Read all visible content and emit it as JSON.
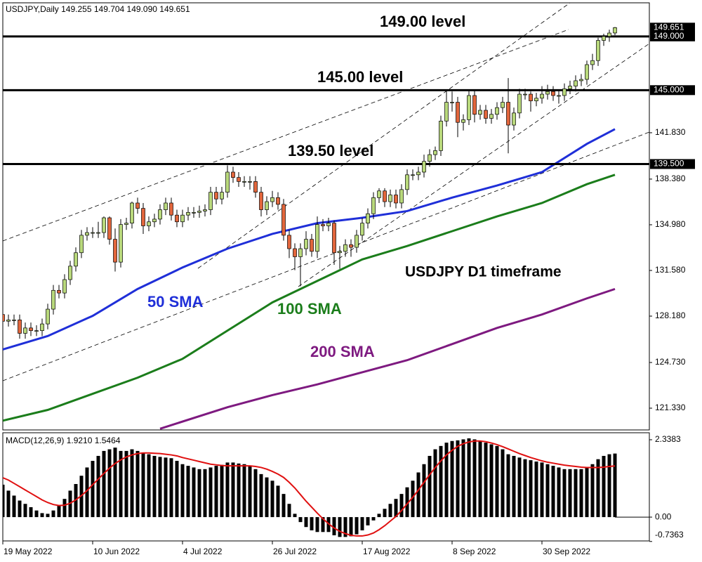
{
  "chart_data": [
    {
      "type": "candlestick",
      "title": "USDJPY,Daily  149.255 149.704 149.090 149.651",
      "categories": [
        "19 May 2022",
        null,
        null,
        null,
        null,
        null,
        null,
        null,
        null,
        null,
        null,
        null,
        null,
        null,
        null,
        null,
        "10 Jun 2022",
        null,
        null,
        null,
        null,
        null,
        null,
        null,
        null,
        null,
        null,
        null,
        null,
        null,
        null,
        null,
        "4 Jul 2022",
        null,
        null,
        null,
        null,
        null,
        null,
        null,
        null,
        null,
        null,
        null,
        null,
        null,
        null,
        null,
        "26 Jul 2022",
        null,
        null,
        null,
        null,
        null,
        null,
        null,
        null,
        null,
        null,
        null,
        null,
        null,
        null,
        null,
        "17 Aug 2022",
        null,
        null,
        null,
        null,
        null,
        null,
        null,
        null,
        null,
        null,
        null,
        null,
        null,
        null,
        null,
        "8 Sep 2022",
        null,
        null,
        null,
        null,
        null,
        null,
        null,
        null,
        null,
        null,
        null,
        null,
        null,
        null,
        null,
        "30 Sep 2022",
        null,
        null,
        null,
        null,
        null,
        null,
        null,
        null,
        null,
        null,
        null,
        null,
        null
      ],
      "open": [
        128.3,
        127.8,
        127.9,
        127.9,
        126.9,
        127.3,
        127.1,
        127.1,
        127.6,
        128.7,
        130.1,
        129.9,
        130.9,
        131.9,
        132.9,
        134.2,
        134.4,
        134.4,
        134.4,
        135.5,
        133.9,
        132.2,
        135.0,
        135.1,
        136.6,
        136.2,
        134.9,
        135.2,
        135.4,
        136.1,
        136.6,
        135.7,
        135.2,
        135.7,
        135.9,
        135.9,
        136.0,
        136.1,
        137.4,
        136.9,
        137.4,
        138.9,
        138.5,
        138.2,
        138.2,
        138.2,
        137.4,
        136.1,
        136.7,
        137.0,
        136.5,
        134.2,
        133.2,
        132.6,
        133.2,
        133.9,
        133.0,
        135.0,
        134.9,
        135.1,
        132.9,
        133.0,
        133.5,
        133.3,
        134.2,
        135.1,
        135.8,
        137.0,
        137.5,
        136.7,
        137.2,
        136.6,
        137.6,
        138.7,
        138.7,
        138.9,
        139.7,
        140.2,
        140.5,
        142.7,
        144.1,
        144.1,
        142.6,
        142.8,
        144.6,
        143.2,
        143.5,
        142.9,
        143.2,
        143.7,
        144.1,
        142.4,
        143.3,
        144.7,
        144.7,
        144.2,
        144.4,
        144.7,
        144.9,
        144.6,
        144.6,
        145.1,
        145.3,
        145.7,
        145.8,
        146.9,
        147.2,
        148.7,
        149.0,
        149.255
      ],
      "high": [
        128.7,
        128.3,
        128.3,
        128.3,
        127.7,
        127.7,
        127.5,
        128.0,
        129.1,
        130.5,
        130.5,
        131.3,
        132.3,
        133.3,
        134.6,
        134.8,
        134.8,
        135.2,
        135.6,
        135.6,
        134.7,
        135.4,
        135.5,
        136.7,
        137.0,
        136.6,
        135.6,
        135.8,
        136.5,
        137.0,
        137.0,
        136.1,
        136.1,
        136.3,
        136.3,
        136.4,
        136.5,
        137.8,
        137.8,
        137.8,
        139.4,
        139.3,
        138.9,
        138.6,
        138.6,
        138.6,
        137.8,
        137.1,
        137.5,
        137.4,
        136.9,
        134.6,
        133.6,
        133.6,
        134.5,
        134.3,
        135.6,
        135.4,
        135.5,
        135.3,
        133.4,
        133.9,
        133.9,
        134.6,
        135.5,
        136.2,
        137.4,
        137.7,
        137.7,
        137.6,
        137.6,
        138.0,
        139.1,
        139.1,
        139.3,
        140.2,
        140.6,
        140.8,
        143.1,
        145.0,
        144.9,
        144.5,
        143.2,
        145.0,
        145.0,
        143.9,
        143.9,
        143.6,
        144.1,
        144.5,
        145.9,
        143.7,
        145.1,
        145.1,
        144.9,
        144.8,
        145.3,
        145.4,
        145.3,
        145.0,
        145.5,
        145.7,
        146.1,
        146.2,
        147.2,
        147.7,
        148.9,
        149.2,
        149.5,
        149.704
      ],
      "low": [
        127.4,
        127.4,
        127.5,
        126.5,
        126.5,
        126.7,
        126.7,
        126.7,
        127.2,
        128.3,
        129.5,
        129.5,
        130.5,
        131.5,
        132.5,
        133.8,
        134.0,
        134.0,
        134.0,
        133.5,
        131.5,
        131.8,
        134.6,
        134.7,
        135.8,
        134.3,
        134.5,
        134.8,
        135.0,
        135.7,
        135.3,
        134.8,
        134.8,
        135.3,
        135.5,
        135.5,
        135.6,
        135.7,
        136.5,
        136.5,
        137.0,
        138.1,
        137.8,
        137.8,
        137.6,
        137.0,
        135.6,
        135.7,
        136.3,
        136.1,
        133.8,
        132.5,
        131.6,
        130.4,
        132.7,
        132.6,
        132.5,
        134.5,
        134.5,
        132.0,
        131.7,
        132.6,
        132.6,
        132.9,
        133.8,
        134.7,
        135.4,
        136.6,
        136.3,
        136.3,
        136.2,
        136.2,
        137.2,
        138.3,
        138.3,
        138.5,
        139.3,
        139.8,
        140.1,
        142.3,
        143.4,
        141.5,
        142.0,
        142.4,
        142.6,
        142.8,
        142.5,
        142.5,
        142.8,
        143.3,
        140.3,
        142.0,
        142.9,
        144.3,
        143.4,
        143.8,
        144.0,
        144.3,
        144.2,
        144.0,
        144.2,
        144.7,
        144.9,
        145.3,
        145.4,
        146.5,
        146.8,
        148.3,
        148.6,
        149.09
      ],
      "close": [
        127.8,
        127.9,
        127.9,
        126.9,
        127.3,
        127.1,
        127.1,
        127.6,
        128.7,
        130.1,
        129.9,
        130.9,
        131.9,
        132.9,
        134.2,
        134.4,
        134.4,
        134.4,
        135.5,
        133.9,
        132.2,
        135.0,
        135.1,
        136.6,
        136.2,
        134.9,
        135.2,
        135.4,
        136.1,
        136.6,
        135.7,
        135.2,
        135.7,
        135.9,
        135.9,
        136.0,
        136.1,
        137.4,
        136.9,
        137.4,
        138.9,
        138.5,
        138.2,
        138.2,
        138.2,
        137.4,
        136.1,
        136.7,
        137.0,
        136.5,
        134.2,
        133.2,
        132.6,
        133.2,
        133.9,
        133.0,
        135.0,
        134.9,
        135.1,
        132.9,
        133.0,
        133.5,
        133.3,
        134.2,
        135.1,
        135.8,
        137.0,
        137.5,
        136.7,
        137.2,
        136.6,
        137.6,
        138.7,
        138.7,
        138.9,
        139.7,
        140.2,
        140.5,
        142.7,
        144.1,
        144.1,
        142.6,
        142.8,
        144.6,
        143.2,
        143.5,
        142.9,
        143.2,
        143.7,
        144.1,
        142.4,
        143.3,
        144.7,
        144.7,
        144.2,
        144.4,
        144.7,
        144.9,
        144.6,
        144.6,
        145.1,
        145.3,
        145.7,
        145.8,
        146.9,
        147.2,
        148.7,
        149.0,
        149.25,
        149.651
      ],
      "up_color": "#b9d97c",
      "down_color": "#e2663c",
      "ylim": [
        119.71,
        151.5
      ],
      "yticks": [
        {
          "value": 121.33,
          "label": "121.330"
        },
        {
          "value": 124.73,
          "label": "124.730"
        },
        {
          "value": 128.18,
          "label": "128.180"
        },
        {
          "value": 131.58,
          "label": "131.580"
        },
        {
          "value": 134.98,
          "label": "134.980"
        },
        {
          "value": 138.38,
          "label": "138.380"
        },
        {
          "value": 141.83,
          "label": "141.830"
        }
      ],
      "overlays": [
        {
          "name": "50 SMA",
          "color": "#1f2fd8",
          "x": [
            0,
            8,
            16,
            24,
            32,
            40,
            48,
            56,
            64,
            72,
            80,
            88,
            96,
            104,
            109
          ],
          "values": [
            125.7,
            126.7,
            128.2,
            130.2,
            131.8,
            133.2,
            134.3,
            135.1,
            135.5,
            136.0,
            137.0,
            137.9,
            138.9,
            141.0,
            142.1
          ]
        },
        {
          "name": "100 SMA",
          "color": "#1b7d1b",
          "x": [
            0,
            8,
            16,
            24,
            32,
            40,
            48,
            56,
            64,
            72,
            80,
            88,
            96,
            104,
            109
          ],
          "values": [
            120.4,
            121.2,
            122.4,
            123.6,
            125.0,
            127.1,
            129.2,
            130.8,
            132.4,
            133.4,
            134.5,
            135.6,
            136.6,
            138.0,
            138.7
          ]
        },
        {
          "name": "200 SMA",
          "color": "#7e1a80",
          "x": [
            28,
            40,
            48,
            56,
            64,
            72,
            80,
            88,
            96,
            104,
            109
          ],
          "values": [
            119.8,
            121.4,
            122.3,
            123.1,
            124.0,
            124.9,
            126.1,
            127.3,
            128.3,
            129.5,
            130.2
          ]
        }
      ],
      "levels": [
        {
          "value": 149,
          "label": "149.000",
          "text": "149.00 level"
        },
        {
          "value": 145,
          "label": "145.000",
          "text": "145.00 level"
        },
        {
          "value": 139.5,
          "label": "139.500",
          "text": "139.50 level"
        }
      ],
      "annotation": "USDJPY D1 timeframe"
    },
    {
      "type": "macd",
      "title": "MACD(12,26,9) 1.9210 1.5464",
      "values": [
        0.98,
        0.8,
        0.65,
        0.5,
        0.4,
        0.3,
        0.2,
        0.12,
        0.1,
        0.2,
        0.35,
        0.55,
        0.8,
        1.0,
        1.25,
        1.5,
        1.7,
        1.85,
        2.0,
        2.05,
        2.1,
        2.0,
        2.0,
        2.05,
        2.0,
        1.95,
        1.9,
        1.85,
        1.82,
        1.8,
        1.78,
        1.7,
        1.6,
        1.55,
        1.5,
        1.45,
        1.45,
        1.5,
        1.55,
        1.58,
        1.65,
        1.65,
        1.62,
        1.6,
        1.55,
        1.45,
        1.3,
        1.2,
        1.1,
        0.95,
        0.7,
        0.4,
        0.1,
        -0.15,
        -0.3,
        -0.4,
        -0.45,
        -0.45,
        -0.45,
        -0.55,
        -0.6,
        -0.6,
        -0.58,
        -0.52,
        -0.4,
        -0.25,
        -0.1,
        0.1,
        0.25,
        0.4,
        0.55,
        0.7,
        0.9,
        1.1,
        1.35,
        1.6,
        1.85,
        2.05,
        2.15,
        2.25,
        2.3,
        2.32,
        2.35,
        2.38,
        2.35,
        2.3,
        2.25,
        2.2,
        2.15,
        2.05,
        1.9,
        1.85,
        1.8,
        1.75,
        1.72,
        1.68,
        1.65,
        1.6,
        1.55,
        1.5,
        1.45,
        1.45,
        1.45,
        1.45,
        1.5,
        1.6,
        1.75,
        1.85,
        1.9,
        1.921
      ],
      "color": "#000000",
      "signal": {
        "color": "#e01010",
        "values": [
          1.19,
          1.12,
          1.02,
          0.92,
          0.82,
          0.72,
          0.62,
          0.52,
          0.44,
          0.38,
          0.35,
          0.36,
          0.42,
          0.52,
          0.65,
          0.8,
          0.98,
          1.15,
          1.32,
          1.48,
          1.62,
          1.73,
          1.82,
          1.88,
          1.92,
          1.94,
          1.94,
          1.93,
          1.92,
          1.9,
          1.88,
          1.85,
          1.8,
          1.76,
          1.72,
          1.68,
          1.64,
          1.6,
          1.58,
          1.56,
          1.55,
          1.55,
          1.55,
          1.55,
          1.55,
          1.53,
          1.5,
          1.45,
          1.38,
          1.3,
          1.2,
          1.05,
          0.88,
          0.68,
          0.48,
          0.3,
          0.12,
          -0.05,
          -0.2,
          -0.33,
          -0.43,
          -0.5,
          -0.55,
          -0.57,
          -0.57,
          -0.54,
          -0.48,
          -0.38,
          -0.26,
          -0.12,
          0.02,
          0.2,
          0.4,
          0.6,
          0.82,
          1.05,
          1.28,
          1.5,
          1.7,
          1.88,
          2.02,
          2.14,
          2.22,
          2.27,
          2.3,
          2.3,
          2.28,
          2.24,
          2.19,
          2.13,
          2.06,
          1.99,
          1.92,
          1.86,
          1.8,
          1.75,
          1.7,
          1.66,
          1.63,
          1.6,
          1.57,
          1.55,
          1.53,
          1.51,
          1.5,
          1.5,
          1.5,
          1.51,
          1.53,
          1.5464
        ]
      },
      "ylim": [
        -0.72,
        2.55
      ],
      "yticks": [
        2.3383,
        {
          "value": 0,
          "label": "0.00"
        },
        -0.7363
      ]
    }
  ]
}
